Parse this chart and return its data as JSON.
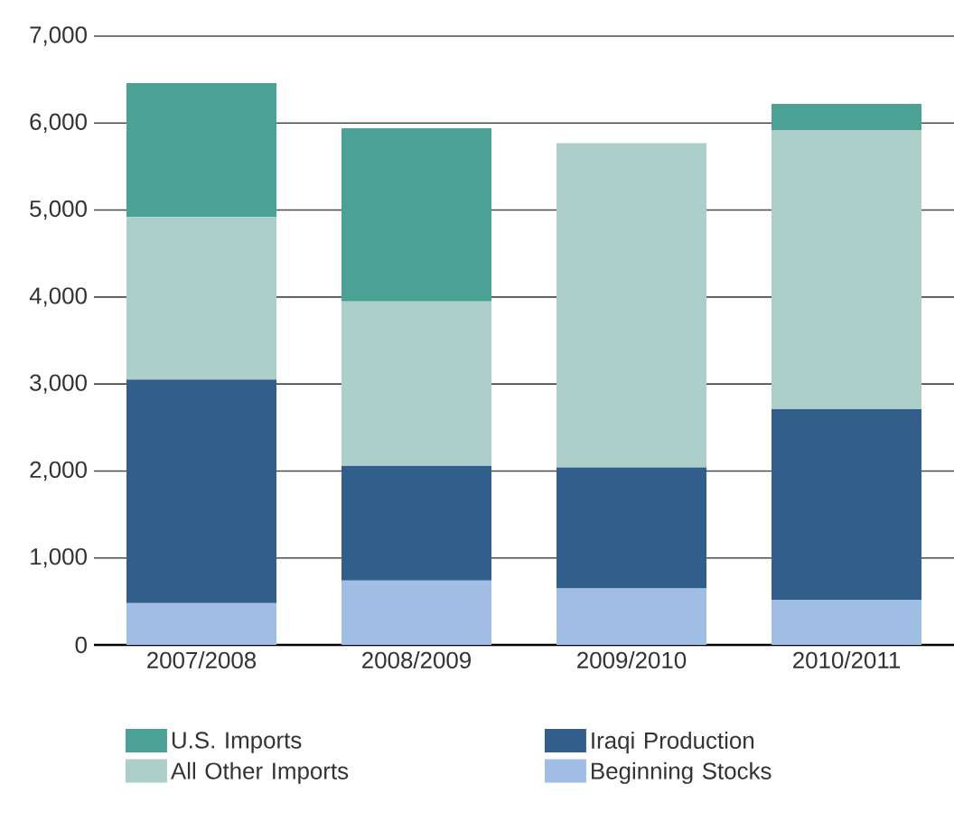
{
  "chart_data": {
    "type": "bar",
    "stacked": true,
    "categories": [
      "2007/2008",
      "2008/2009",
      "2009/2010",
      "2010/2011"
    ],
    "series": [
      {
        "name": "Beginning Stocks",
        "color": "#a0bde3",
        "values": [
          480,
          740,
          650,
          520
        ]
      },
      {
        "name": "Iraqi Production",
        "color": "#325e8b",
        "values": [
          2570,
          1320,
          1390,
          2190
        ]
      },
      {
        "name": "All Other Imports",
        "color": "#acd0c9",
        "values": [
          1870,
          1890,
          3730,
          3210
        ]
      },
      {
        "name": "U.S. Imports",
        "color": "#4ba193",
        "values": [
          1540,
          1990,
          0,
          300
        ]
      }
    ],
    "ylim": [
      0,
      7000
    ],
    "yticks": [
      0,
      {
        "value": 1000,
        "label": "1,000"
      },
      {
        "value": 2000,
        "label": "2,000"
      },
      {
        "value": 3000,
        "label": "3,000"
      },
      {
        "value": 4000,
        "label": "4,000"
      },
      {
        "value": 5000,
        "label": "5,000"
      },
      {
        "value": 6000,
        "label": "6,000"
      },
      {
        "value": 7000,
        "label": "7,000"
      }
    ],
    "grid": "y",
    "legend": "bottom"
  }
}
